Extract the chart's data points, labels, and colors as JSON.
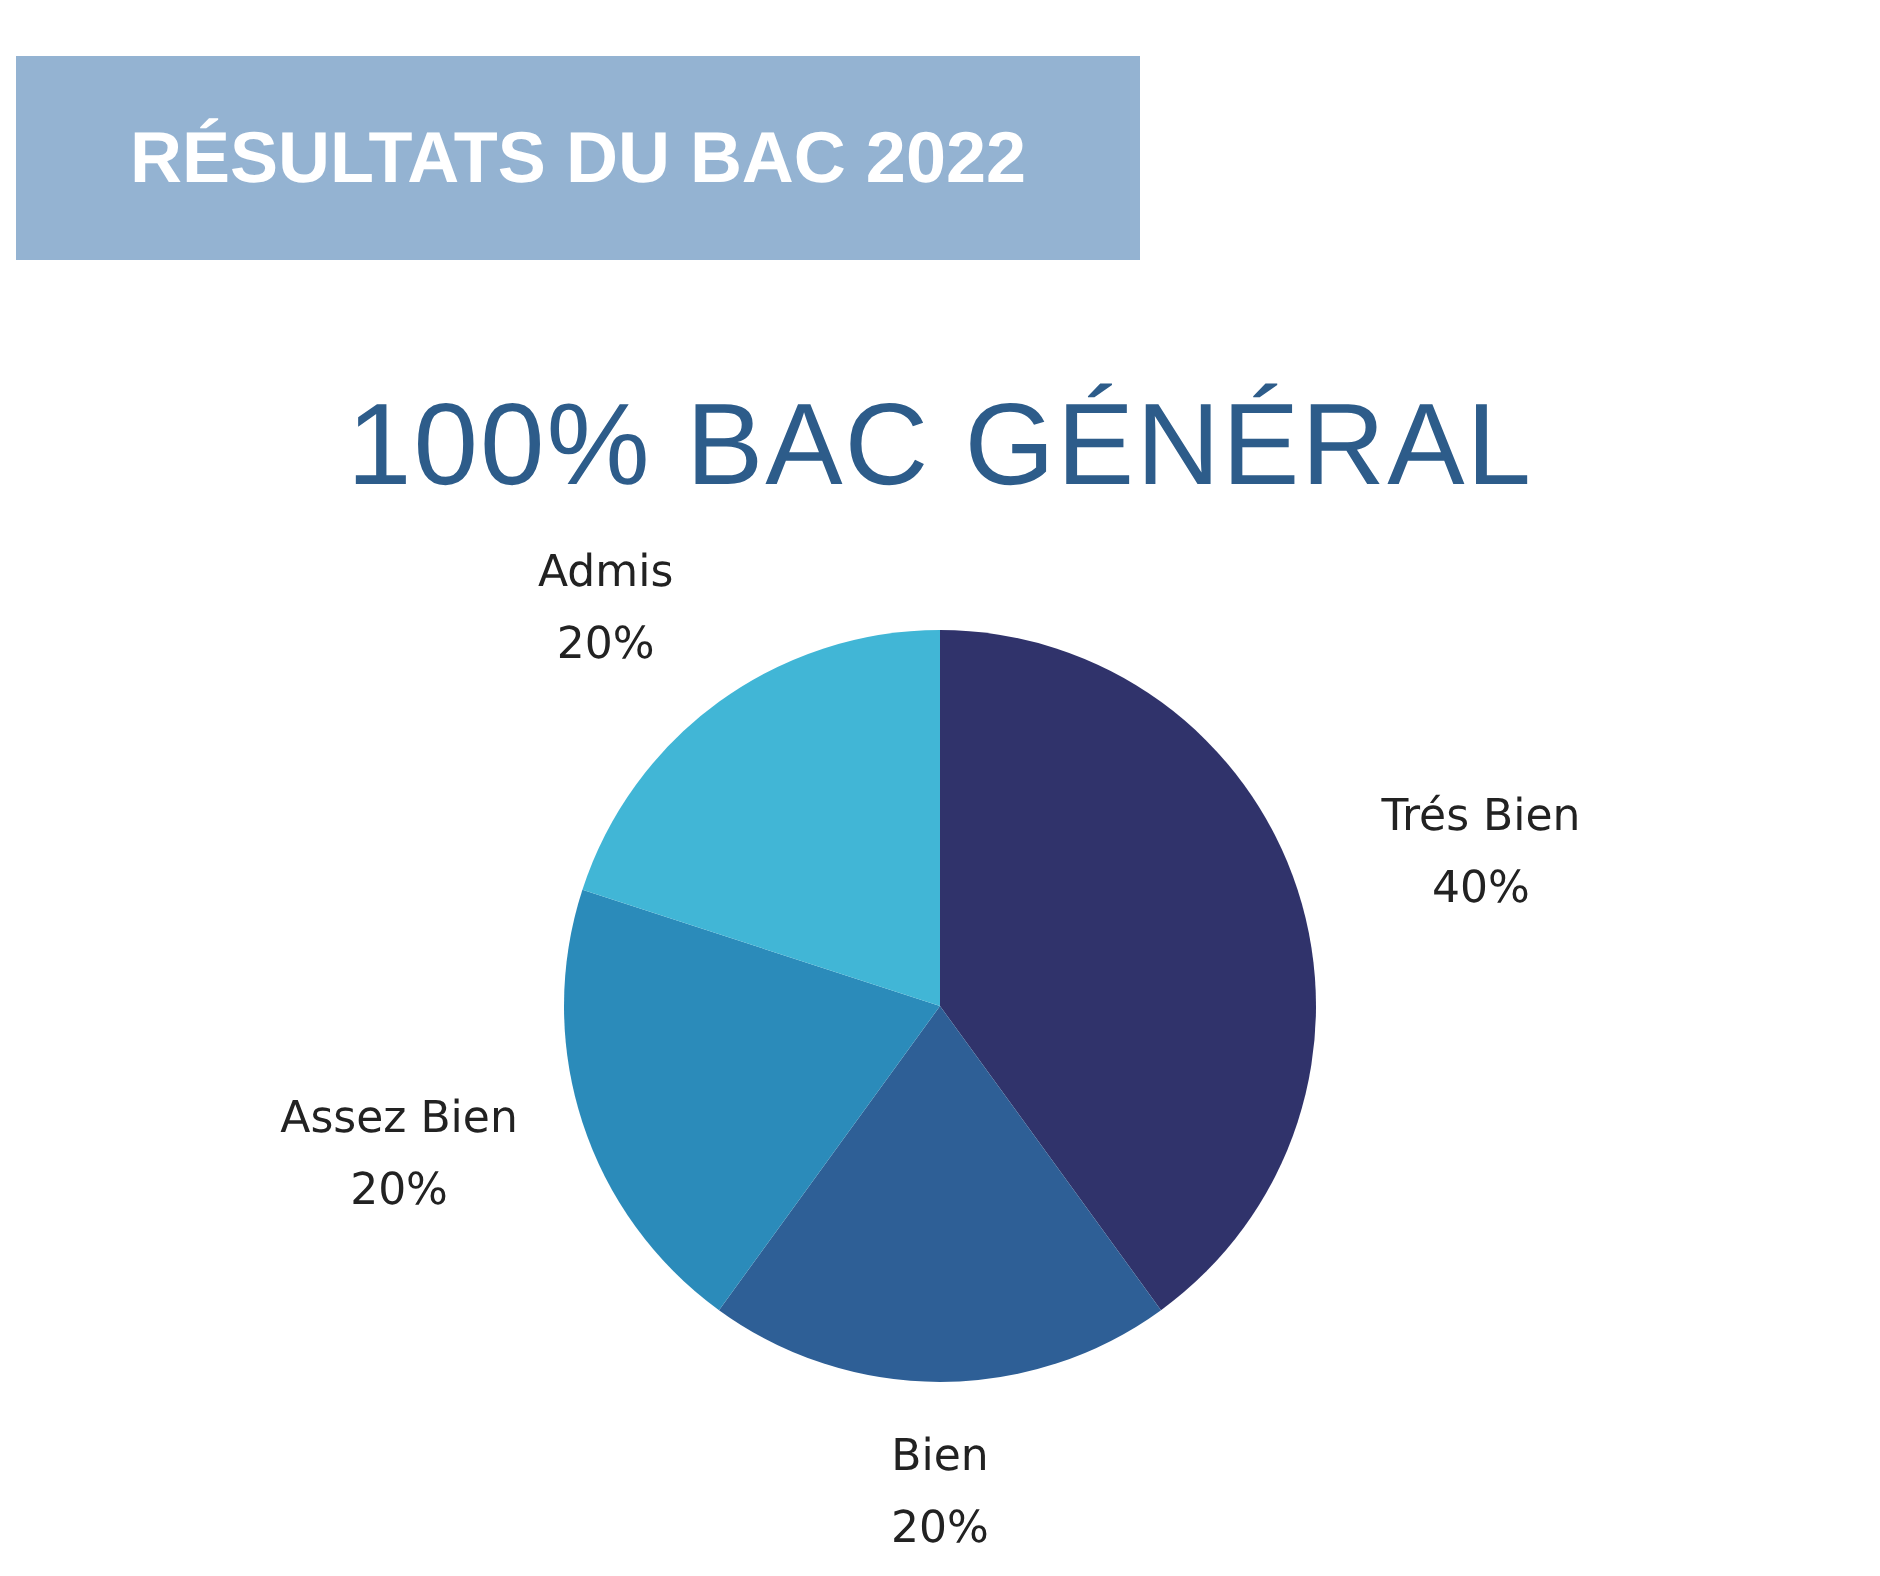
{
  "chart_data": {
    "type": "pie",
    "title": "RÉSULTATS DU BAC 2022",
    "subtitle": "100% BAC GÉNÉRAL",
    "categories": [
      "Trés Bien",
      "Bien",
      "Assez Bien",
      "Admis"
    ],
    "values": [
      40,
      20,
      20,
      20
    ],
    "value_labels": [
      "40%",
      "20%",
      "20%",
      "20%"
    ],
    "colors": [
      "#30336b",
      "#2e5f96",
      "#2b8bba",
      "#41b6d6"
    ],
    "legend": false
  }
}
